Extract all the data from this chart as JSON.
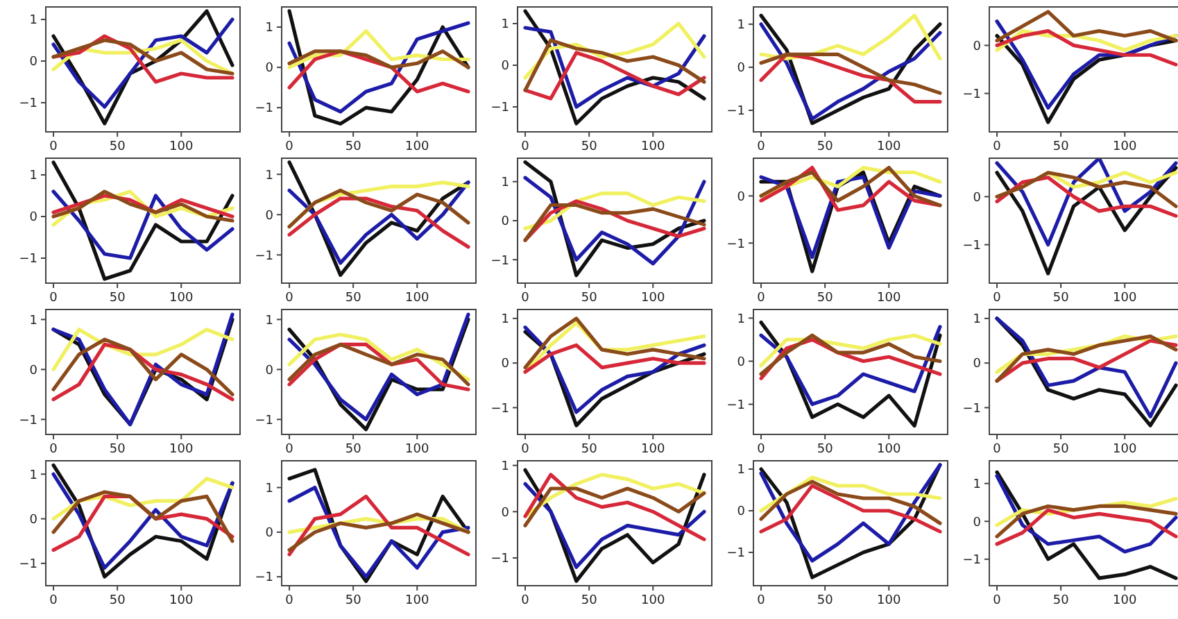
{
  "chart_data": [
    {
      "type": "line",
      "x": [
        0,
        20,
        40,
        60,
        80,
        100,
        120,
        140
      ],
      "xlim": [
        -6,
        146
      ],
      "xticks": [
        0,
        50,
        100
      ],
      "ylim": [
        -1.7,
        1.3
      ],
      "yticks": [
        -1,
        0,
        1
      ],
      "series": [
        {
          "color": "#111111",
          "values": [
            0.6,
            -0.4,
            -1.5,
            -0.3,
            0,
            0.5,
            1.2,
            -0.1
          ]
        },
        {
          "color": "#1c1ca8",
          "values": [
            0.4,
            -0.5,
            -1.1,
            -0.3,
            0.5,
            0.6,
            0.2,
            1.0
          ]
        },
        {
          "color": "#f0f060",
          "values": [
            -0.2,
            0.3,
            0.2,
            0.2,
            0.3,
            0.5,
            0.0,
            -0.3
          ]
        },
        {
          "color": "#d62838",
          "values": [
            0.1,
            0.2,
            0.6,
            0.3,
            -0.5,
            -0.3,
            -0.4,
            -0.4
          ]
        },
        {
          "color": "#8b4a1a",
          "values": [
            0.1,
            0.3,
            0.5,
            0.4,
            0.0,
            0.2,
            -0.2,
            -0.3
          ]
        }
      ]
    },
    {
      "type": "line",
      "x": [
        0,
        20,
        40,
        60,
        80,
        100,
        120,
        140
      ],
      "xlim": [
        -6,
        146
      ],
      "xticks": [
        0,
        50,
        100
      ],
      "ylim": [
        -1.6,
        1.5
      ],
      "yticks": [
        -1,
        0,
        1
      ],
      "series": [
        {
          "color": "#111111",
          "values": [
            1.4,
            -1.2,
            -1.4,
            -1.0,
            -1.1,
            -0.3,
            1.0,
            0.0
          ]
        },
        {
          "color": "#1c1ca8",
          "values": [
            0.6,
            -0.8,
            -1.1,
            -0.6,
            -0.4,
            0.7,
            0.9,
            1.1
          ]
        },
        {
          "color": "#f0f060",
          "values": [
            0,
            0.3,
            0.3,
            0.9,
            0.2,
            0.3,
            0.2,
            0.2
          ]
        },
        {
          "color": "#d62838",
          "values": [
            -0.5,
            0.2,
            0.4,
            0.2,
            0,
            -0.6,
            -0.4,
            -0.6
          ]
        },
        {
          "color": "#8b4a1a",
          "values": [
            0.1,
            0.4,
            0.4,
            0.3,
            0.0,
            0.1,
            0.4,
            0.0
          ]
        }
      ]
    },
    {
      "type": "line",
      "x": [
        0,
        20,
        40,
        60,
        80,
        100,
        120,
        140
      ],
      "xlim": [
        -6,
        146
      ],
      "xticks": [
        0,
        50,
        100
      ],
      "ylim": [
        -1.6,
        1.4
      ],
      "yticks": [
        -1,
        0,
        1
      ],
      "series": [
        {
          "color": "#111111",
          "values": [
            1.3,
            0.4,
            -1.4,
            -0.8,
            -0.5,
            -0.3,
            -0.4,
            -0.8
          ]
        },
        {
          "color": "#1c1ca8",
          "values": [
            0.9,
            0.8,
            -1.0,
            -0.6,
            -0.3,
            -0.5,
            -0.2,
            0.7
          ]
        },
        {
          "color": "#f0f060",
          "values": [
            -0.3,
            0.4,
            0.5,
            0.2,
            0.3,
            0.5,
            1.0,
            0.2
          ]
        },
        {
          "color": "#d62838",
          "values": [
            -0.6,
            -0.8,
            0.3,
            0.1,
            -0.2,
            -0.5,
            -0.7,
            -0.3
          ]
        },
        {
          "color": "#8b4a1a",
          "values": [
            -0.6,
            0.6,
            0.4,
            0.3,
            0.1,
            0.2,
            0.0,
            -0.4
          ]
        }
      ]
    },
    {
      "type": "line",
      "x": [
        0,
        20,
        40,
        60,
        80,
        100,
        120,
        140
      ],
      "xlim": [
        -6,
        146
      ],
      "xticks": [
        0,
        50,
        100
      ],
      "ylim": [
        -1.5,
        1.4
      ],
      "yticks": [
        -1,
        0,
        1
      ],
      "series": [
        {
          "color": "#111111",
          "values": [
            1.2,
            0.4,
            -1.3,
            -1.0,
            -0.7,
            -0.5,
            0.4,
            1.0
          ]
        },
        {
          "color": "#1c1ca8",
          "values": [
            1.0,
            0.1,
            -1.2,
            -0.8,
            -0.5,
            -0.1,
            0.2,
            0.8
          ]
        },
        {
          "color": "#f0f060",
          "values": [
            0.3,
            0.2,
            0.3,
            0.5,
            0.3,
            0.7,
            1.2,
            0.2
          ]
        },
        {
          "color": "#d62838",
          "values": [
            -0.3,
            0.3,
            0.2,
            0.0,
            -0.2,
            -0.3,
            -0.8,
            -0.8
          ]
        },
        {
          "color": "#8b4a1a",
          "values": [
            0.1,
            0.3,
            0.3,
            0.3,
            0.0,
            -0.3,
            -0.4,
            -0.6
          ]
        }
      ]
    },
    {
      "type": "line",
      "x": [
        0,
        20,
        40,
        60,
        80,
        100,
        120,
        140
      ],
      "xlim": [
        -6,
        146
      ],
      "xticks": [
        0,
        50,
        100
      ],
      "ylim": [
        -1.8,
        0.8
      ],
      "yticks": [
        -1,
        0
      ],
      "series": [
        {
          "color": "#111111",
          "values": [
            0.2,
            -0.4,
            -1.6,
            -0.7,
            -0.3,
            -0.2,
            0.0,
            0.1
          ]
        },
        {
          "color": "#1c1ca8",
          "values": [
            0.5,
            -0.3,
            -1.3,
            -0.6,
            -0.2,
            -0.2,
            0.0,
            0.2
          ]
        },
        {
          "color": "#f0f060",
          "values": [
            -0.1,
            0.3,
            0.2,
            0.2,
            0.1,
            -0.1,
            0.1,
            0.2
          ]
        },
        {
          "color": "#d62838",
          "values": [
            0.0,
            0.2,
            0.3,
            0.0,
            -0.1,
            -0.2,
            -0.2,
            -0.4
          ]
        },
        {
          "color": "#8b4a1a",
          "values": [
            0.1,
            0.4,
            0.7,
            0.2,
            0.3,
            0.2,
            0.3,
            0.1
          ]
        }
      ]
    },
    {
      "type": "line",
      "x": [
        0,
        20,
        40,
        60,
        80,
        100,
        120,
        140
      ],
      "xlim": [
        -6,
        146
      ],
      "xticks": [
        0,
        50,
        100
      ],
      "ylim": [
        -1.6,
        1.4
      ],
      "yticks": [
        -1,
        0,
        1
      ],
      "series": [
        {
          "color": "#111111",
          "values": [
            1.3,
            0.2,
            -1.5,
            -1.3,
            -0.2,
            -0.6,
            -0.6,
            0.5
          ]
        },
        {
          "color": "#1c1ca8",
          "values": [
            0.6,
            -0.1,
            -0.9,
            -1.0,
            0.5,
            -0.3,
            -0.8,
            -0.3
          ]
        },
        {
          "color": "#f0f060",
          "values": [
            -0.2,
            0.3,
            0.4,
            0.6,
            0.0,
            0.2,
            0.0,
            0.2
          ]
        },
        {
          "color": "#d62838",
          "values": [
            0.1,
            0.3,
            0.5,
            0.4,
            0.1,
            0.4,
            0.2,
            0.0
          ]
        },
        {
          "color": "#8b4a1a",
          "values": [
            0.0,
            0.2,
            0.6,
            0.3,
            0.1,
            0.3,
            0.0,
            -0.1
          ]
        }
      ]
    },
    {
      "type": "line",
      "x": [
        0,
        20,
        40,
        60,
        80,
        100,
        120,
        140
      ],
      "xlim": [
        -6,
        146
      ],
      "xticks": [
        0,
        50,
        100
      ],
      "ylim": [
        -1.7,
        1.4
      ],
      "yticks": [
        -1,
        0,
        1
      ],
      "series": [
        {
          "color": "#111111",
          "values": [
            1.3,
            0.0,
            -1.5,
            -0.7,
            -0.2,
            -0.4,
            0.4,
            0.8
          ]
        },
        {
          "color": "#1c1ca8",
          "values": [
            0.6,
            0.0,
            -1.2,
            -0.5,
            0.0,
            -0.6,
            0.0,
            0.8
          ]
        },
        {
          "color": "#f0f060",
          "values": [
            -0.3,
            0.3,
            0.5,
            0.6,
            0.7,
            0.7,
            0.8,
            0.7
          ]
        },
        {
          "color": "#d62838",
          "values": [
            -0.5,
            0.0,
            0.4,
            0.4,
            0.2,
            0.1,
            -0.4,
            -0.8
          ]
        },
        {
          "color": "#8b4a1a",
          "values": [
            -0.3,
            0.3,
            0.6,
            0.3,
            0.1,
            0.5,
            0.3,
            -0.2
          ]
        }
      ]
    },
    {
      "type": "line",
      "x": [
        0,
        20,
        40,
        60,
        80,
        100,
        120,
        140
      ],
      "xlim": [
        -6,
        146
      ],
      "xticks": [
        0,
        50,
        100
      ],
      "ylim": [
        -1.6,
        1.6
      ],
      "yticks": [
        -1,
        0,
        1
      ],
      "series": [
        {
          "color": "#111111",
          "values": [
            1.5,
            1.0,
            -1.4,
            -0.5,
            -0.7,
            -0.6,
            -0.2,
            0.0
          ]
        },
        {
          "color": "#1c1ca8",
          "values": [
            1.1,
            0.6,
            -1.0,
            -0.3,
            -0.6,
            -1.1,
            -0.4,
            1.0
          ]
        },
        {
          "color": "#f0f060",
          "values": [
            -0.2,
            0.0,
            0.5,
            0.7,
            0.7,
            0.4,
            0.6,
            0.5
          ]
        },
        {
          "color": "#d62838",
          "values": [
            -0.5,
            0.2,
            0.5,
            0.3,
            0.0,
            -0.2,
            -0.4,
            -0.2
          ]
        },
        {
          "color": "#8b4a1a",
          "values": [
            -0.5,
            0.4,
            0.4,
            0.2,
            0.2,
            0.3,
            0.1,
            -0.1
          ]
        }
      ]
    },
    {
      "type": "line",
      "x": [
        0,
        20,
        40,
        60,
        80,
        100,
        120,
        140
      ],
      "xlim": [
        -6,
        146
      ],
      "xticks": [
        0,
        50,
        100
      ],
      "ylim": [
        -1.85,
        0.8
      ],
      "yticks": [
        -1,
        0
      ],
      "series": [
        {
          "color": "#111111",
          "values": [
            0.3,
            0.3,
            -1.6,
            0.2,
            0.5,
            -1.0,
            0.2,
            0.0
          ]
        },
        {
          "color": "#1c1ca8",
          "values": [
            0.4,
            0.2,
            -1.3,
            0.3,
            0.4,
            -1.1,
            0.1,
            0.0
          ]
        },
        {
          "color": "#f0f060",
          "values": [
            0.0,
            0.2,
            0.4,
            0.2,
            0.6,
            0.5,
            0.5,
            0.3
          ]
        },
        {
          "color": "#d62838",
          "values": [
            -0.1,
            0.2,
            0.6,
            -0.3,
            -0.2,
            0.3,
            -0.1,
            -0.2
          ]
        },
        {
          "color": "#8b4a1a",
          "values": [
            0.0,
            0.3,
            0.5,
            -0.1,
            0.2,
            0.6,
            0.0,
            -0.2
          ]
        }
      ]
    },
    {
      "type": "line",
      "x": [
        0,
        20,
        40,
        60,
        80,
        100,
        120,
        140
      ],
      "xlim": [
        -6,
        146
      ],
      "xticks": [
        0,
        50,
        100
      ],
      "ylim": [
        -1.8,
        0.8
      ],
      "yticks": [
        -1,
        0
      ],
      "series": [
        {
          "color": "#111111",
          "values": [
            0.5,
            -0.3,
            -1.6,
            -0.2,
            0.2,
            -0.7,
            0.0,
            0.6
          ]
        },
        {
          "color": "#1c1ca8",
          "values": [
            0.7,
            0.1,
            -1.0,
            0.3,
            0.8,
            -0.3,
            0.1,
            0.7
          ]
        },
        {
          "color": "#f0f060",
          "values": [
            0.0,
            0.2,
            0.5,
            0.2,
            0.3,
            0.5,
            0.3,
            0.5
          ]
        },
        {
          "color": "#d62838",
          "values": [
            -0.1,
            0.3,
            0.4,
            0.0,
            -0.3,
            -0.2,
            -0.2,
            -0.4
          ]
        },
        {
          "color": "#8b4a1a",
          "values": [
            0.0,
            0.2,
            0.5,
            0.4,
            0.2,
            0.3,
            0.2,
            -0.2
          ]
        }
      ]
    },
    {
      "type": "line",
      "x": [
        0,
        20,
        40,
        60,
        80,
        100,
        120,
        140
      ],
      "xlim": [
        -6,
        146
      ],
      "xticks": [
        0,
        50,
        100
      ],
      "ylim": [
        -1.3,
        1.2
      ],
      "yticks": [
        -1,
        0,
        1
      ],
      "series": [
        {
          "color": "#111111",
          "values": [
            0.8,
            0.5,
            -0.5,
            -1.1,
            0.0,
            -0.2,
            -0.6,
            1.0
          ]
        },
        {
          "color": "#1c1ca8",
          "values": [
            0.8,
            0.6,
            -0.4,
            -1.1,
            0.1,
            -0.3,
            -0.5,
            1.1
          ]
        },
        {
          "color": "#f0f060",
          "values": [
            0.0,
            0.8,
            0.5,
            0.3,
            0.3,
            0.5,
            0.8,
            0.6
          ]
        },
        {
          "color": "#d62838",
          "values": [
            -0.6,
            -0.3,
            0.5,
            0.4,
            0.0,
            -0.1,
            -0.3,
            -0.6
          ]
        },
        {
          "color": "#8b4a1a",
          "values": [
            -0.4,
            0.3,
            0.6,
            0.4,
            -0.2,
            0.3,
            0.0,
            -0.5
          ]
        }
      ]
    },
    {
      "type": "line",
      "x": [
        0,
        20,
        40,
        60,
        80,
        100,
        120,
        140
      ],
      "xlim": [
        -6,
        146
      ],
      "xticks": [
        0,
        50,
        100
      ],
      "ylim": [
        -1.3,
        1.2
      ],
      "yticks": [
        -1,
        0,
        1
      ],
      "series": [
        {
          "color": "#111111",
          "values": [
            0.8,
            0.2,
            -0.7,
            -1.2,
            -0.2,
            -0.4,
            -0.4,
            1.0
          ]
        },
        {
          "color": "#1c1ca8",
          "values": [
            0.6,
            0.1,
            -0.6,
            -1.0,
            -0.1,
            -0.5,
            -0.3,
            1.1
          ]
        },
        {
          "color": "#f0f060",
          "values": [
            0.1,
            0.6,
            0.7,
            0.6,
            0.2,
            0.4,
            0.1,
            -0.2
          ]
        },
        {
          "color": "#d62838",
          "values": [
            -0.3,
            0.2,
            0.5,
            0.5,
            0.1,
            0.2,
            -0.3,
            -0.4
          ]
        },
        {
          "color": "#8b4a1a",
          "values": [
            -0.2,
            0.3,
            0.5,
            0.3,
            0.1,
            0.3,
            0.2,
            -0.3
          ]
        }
      ]
    },
    {
      "type": "line",
      "x": [
        0,
        20,
        40,
        60,
        80,
        100,
        120,
        140
      ],
      "xlim": [
        -6,
        146
      ],
      "xticks": [
        0,
        50,
        100
      ],
      "ylim": [
        -1.6,
        1.2
      ],
      "yticks": [
        -1,
        0,
        1
      ],
      "series": [
        {
          "color": "#111111",
          "values": [
            0.7,
            0.2,
            -1.4,
            -0.8,
            -0.5,
            -0.2,
            0.0,
            0.2
          ]
        },
        {
          "color": "#1c1ca8",
          "values": [
            0.8,
            0.2,
            -1.1,
            -0.6,
            -0.3,
            -0.2,
            0.2,
            0.4
          ]
        },
        {
          "color": "#f0f060",
          "values": [
            -0.2,
            0.4,
            0.9,
            0.3,
            0.3,
            0.4,
            0.5,
            0.6
          ]
        },
        {
          "color": "#d62838",
          "values": [
            -0.2,
            0.2,
            0.4,
            -0.1,
            0.0,
            0.1,
            0.0,
            0.0
          ]
        },
        {
          "color": "#8b4a1a",
          "values": [
            -0.1,
            0.6,
            1.0,
            0.3,
            0.2,
            0.3,
            0.2,
            0.1
          ]
        }
      ]
    },
    {
      "type": "line",
      "x": [
        0,
        20,
        40,
        60,
        80,
        100,
        120,
        140
      ],
      "xlim": [
        -6,
        146
      ],
      "xticks": [
        0,
        50,
        100
      ],
      "ylim": [
        -1.7,
        1.2
      ],
      "yticks": [
        -1,
        0,
        1
      ],
      "series": [
        {
          "color": "#111111",
          "values": [
            0.9,
            0.1,
            -1.3,
            -1.0,
            -1.3,
            -0.8,
            -1.5,
            0.6
          ]
        },
        {
          "color": "#1c1ca8",
          "values": [
            0.6,
            0.1,
            -1.0,
            -0.8,
            -0.3,
            -0.5,
            -0.7,
            0.8
          ]
        },
        {
          "color": "#f0f060",
          "values": [
            -0.1,
            0.5,
            0.5,
            0.4,
            0.3,
            0.5,
            0.6,
            0.4
          ]
        },
        {
          "color": "#d62838",
          "values": [
            -0.4,
            0.3,
            0.5,
            0.2,
            0.0,
            0.1,
            -0.1,
            -0.3
          ]
        },
        {
          "color": "#8b4a1a",
          "values": [
            -0.3,
            0.2,
            0.6,
            0.2,
            0.2,
            0.4,
            0.1,
            0.0
          ]
        }
      ]
    },
    {
      "type": "line",
      "x": [
        0,
        20,
        40,
        60,
        80,
        100,
        120,
        140
      ],
      "xlim": [
        -6,
        146
      ],
      "xticks": [
        0,
        50,
        100
      ],
      "ylim": [
        -1.6,
        1.2
      ],
      "yticks": [
        -1,
        0,
        1
      ],
      "series": [
        {
          "color": "#111111",
          "values": [
            1.0,
            0.4,
            -0.6,
            -0.8,
            -0.6,
            -0.7,
            -1.4,
            -0.5
          ]
        },
        {
          "color": "#1c1ca8",
          "values": [
            1.0,
            0.5,
            -0.5,
            -0.4,
            -0.1,
            -0.2,
            -1.2,
            0.0
          ]
        },
        {
          "color": "#f0f060",
          "values": [
            -0.2,
            0.2,
            0.2,
            0.3,
            0.4,
            0.6,
            0.5,
            0.6
          ]
        },
        {
          "color": "#d62838",
          "values": [
            -0.4,
            0.0,
            0.1,
            0.1,
            -0.1,
            0.2,
            0.5,
            0.4
          ]
        },
        {
          "color": "#8b4a1a",
          "values": [
            -0.4,
            0.2,
            0.3,
            0.2,
            0.4,
            0.5,
            0.6,
            0.3
          ]
        }
      ]
    },
    {
      "type": "line",
      "x": [
        0,
        20,
        40,
        60,
        80,
        100,
        120,
        140
      ],
      "xlim": [
        -6,
        146
      ],
      "xticks": [
        0,
        50,
        100
      ],
      "ylim": [
        -1.5,
        1.3
      ],
      "yticks": [
        -1,
        0,
        1
      ],
      "series": [
        {
          "color": "#111111",
          "values": [
            1.2,
            0.3,
            -1.3,
            -0.8,
            -0.4,
            -0.5,
            -0.9,
            0.8
          ]
        },
        {
          "color": "#1c1ca8",
          "values": [
            1.0,
            0.1,
            -1.1,
            -0.5,
            0.2,
            -0.4,
            -0.6,
            0.8
          ]
        },
        {
          "color": "#f0f060",
          "values": [
            0.0,
            0.4,
            0.5,
            0.3,
            0.4,
            0.4,
            0.9,
            0.7
          ]
        },
        {
          "color": "#d62838",
          "values": [
            -0.7,
            -0.4,
            0.5,
            0.5,
            0.0,
            0.1,
            0.0,
            -0.4
          ]
        },
        {
          "color": "#8b4a1a",
          "values": [
            -0.3,
            0.4,
            0.6,
            0.5,
            0.0,
            0.4,
            0.5,
            -0.5
          ]
        }
      ]
    },
    {
      "type": "line",
      "x": [
        0,
        20,
        40,
        60,
        80,
        100,
        120,
        140
      ],
      "xlim": [
        -6,
        146
      ],
      "xticks": [
        0,
        50,
        100
      ],
      "ylim": [
        -1.2,
        1.6
      ],
      "yticks": [
        -1,
        0,
        1
      ],
      "series": [
        {
          "color": "#111111",
          "values": [
            1.2,
            1.4,
            -0.3,
            -1.1,
            -0.2,
            -0.5,
            0.8,
            0.0
          ]
        },
        {
          "color": "#1c1ca8",
          "values": [
            0.7,
            1.0,
            -0.3,
            -1.0,
            -0.2,
            -0.8,
            0.0,
            0.1
          ]
        },
        {
          "color": "#f0f060",
          "values": [
            0.0,
            0.1,
            0.2,
            0.3,
            0.2,
            0.3,
            0.3,
            0.0
          ]
        },
        {
          "color": "#d62838",
          "values": [
            -0.5,
            0.3,
            0.4,
            0.8,
            0.1,
            0.1,
            -0.2,
            -0.5
          ]
        },
        {
          "color": "#8b4a1a",
          "values": [
            -0.4,
            0.0,
            0.2,
            0.1,
            0.2,
            0.4,
            0.2,
            0.0
          ]
        }
      ]
    },
    {
      "type": "line",
      "x": [
        0,
        20,
        40,
        60,
        80,
        100,
        120,
        140
      ],
      "xlim": [
        -6,
        146
      ],
      "xticks": [
        0,
        50,
        100
      ],
      "ylim": [
        -1.6,
        1.1
      ],
      "yticks": [
        -1,
        0,
        1
      ],
      "series": [
        {
          "color": "#111111",
          "values": [
            0.9,
            0.0,
            -1.5,
            -0.8,
            -0.5,
            -1.1,
            -0.7,
            0.8
          ]
        },
        {
          "color": "#1c1ca8",
          "values": [
            0.6,
            0.0,
            -1.2,
            -0.6,
            -0.3,
            -0.4,
            -0.5,
            0.0
          ]
        },
        {
          "color": "#f0f060",
          "values": [
            -0.1,
            0.3,
            0.6,
            0.8,
            0.7,
            0.5,
            0.6,
            0.4
          ]
        },
        {
          "color": "#d62838",
          "values": [
            -0.1,
            0.8,
            0.3,
            0.1,
            0.2,
            0.0,
            -0.3,
            -0.6
          ]
        },
        {
          "color": "#8b4a1a",
          "values": [
            -0.3,
            0.5,
            0.5,
            0.3,
            0.5,
            0.3,
            0.0,
            0.4
          ]
        }
      ]
    },
    {
      "type": "line",
      "x": [
        0,
        20,
        40,
        60,
        80,
        100,
        120,
        140
      ],
      "xlim": [
        -6,
        146
      ],
      "xticks": [
        0,
        50,
        100
      ],
      "ylim": [
        -1.8,
        1.2
      ],
      "yticks": [
        -1,
        0,
        1
      ],
      "series": [
        {
          "color": "#111111",
          "values": [
            1.0,
            0.2,
            -1.6,
            -1.3,
            -1.0,
            -0.8,
            -0.2,
            1.1
          ]
        },
        {
          "color": "#1c1ca8",
          "values": [
            0.9,
            -0.3,
            -1.2,
            -0.8,
            -0.3,
            -0.8,
            0.2,
            1.1
          ]
        },
        {
          "color": "#f0f060",
          "values": [
            0.0,
            0.4,
            0.8,
            0.6,
            0.6,
            0.4,
            0.4,
            0.3
          ]
        },
        {
          "color": "#d62838",
          "values": [
            -0.5,
            -0.2,
            0.6,
            0.3,
            0.0,
            0.0,
            -0.2,
            -0.5
          ]
        },
        {
          "color": "#8b4a1a",
          "values": [
            -0.2,
            0.4,
            0.7,
            0.4,
            0.3,
            0.3,
            0.1,
            -0.3
          ]
        }
      ]
    },
    {
      "type": "line",
      "x": [
        0,
        20,
        40,
        60,
        80,
        100,
        120,
        140
      ],
      "xlim": [
        -6,
        146
      ],
      "xticks": [
        0,
        50,
        100
      ],
      "ylim": [
        -1.7,
        1.6
      ],
      "yticks": [
        -1,
        0,
        1
      ],
      "series": [
        {
          "color": "#111111",
          "values": [
            1.3,
            0.2,
            -1.0,
            -0.6,
            -1.5,
            -1.4,
            -1.2,
            -1.5
          ]
        },
        {
          "color": "#1c1ca8",
          "values": [
            1.2,
            -0.1,
            -0.6,
            -0.5,
            -0.4,
            -0.8,
            -0.6,
            0.1
          ]
        },
        {
          "color": "#f0f060",
          "values": [
            -0.1,
            0.3,
            0.2,
            0.3,
            0.4,
            0.5,
            0.4,
            0.6
          ]
        },
        {
          "color": "#d62838",
          "values": [
            -0.6,
            -0.3,
            0.3,
            0.1,
            0.2,
            0.1,
            0.0,
            -0.4
          ]
        },
        {
          "color": "#8b4a1a",
          "values": [
            -0.4,
            0.2,
            0.4,
            0.3,
            0.4,
            0.4,
            0.3,
            0.2
          ]
        }
      ]
    }
  ]
}
